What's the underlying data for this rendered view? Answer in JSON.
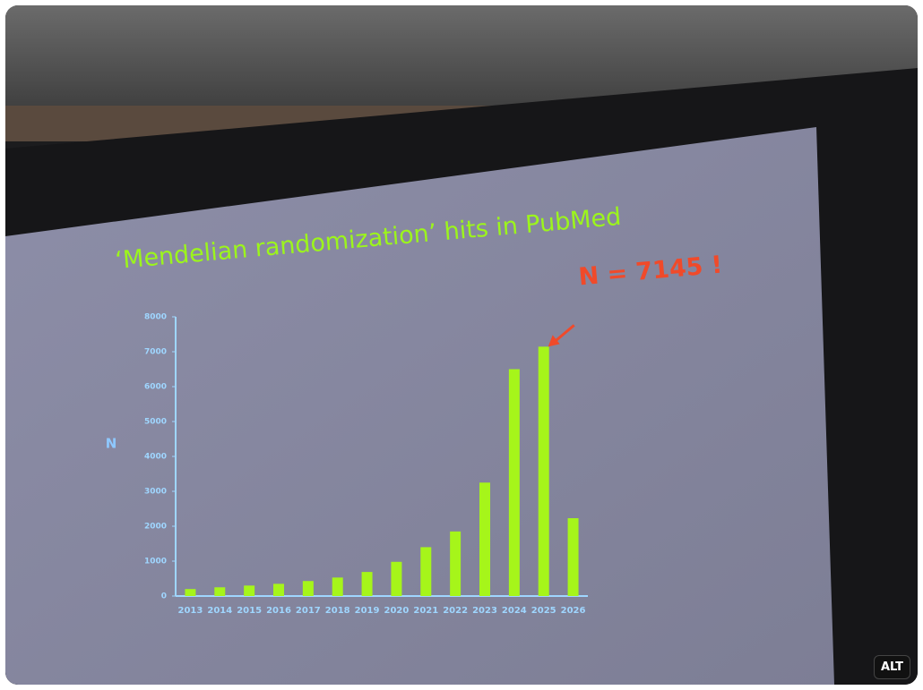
{
  "alt_button": "ALT",
  "chart_data": {
    "type": "bar",
    "title": "‘Mendelian randomization’ hits in PubMed",
    "y_label": "N",
    "annotation": "N = 7145 !",
    "categories": [
      "2013",
      "2014",
      "2015",
      "2016",
      "2017",
      "2018",
      "2019",
      "2020",
      "2021",
      "2022",
      "2023",
      "2024",
      "2025",
      "2026"
    ],
    "values": [
      200,
      250,
      300,
      350,
      430,
      530,
      690,
      980,
      1400,
      1850,
      3250,
      6500,
      7145,
      2230
    ],
    "color": "#a6f51a",
    "ylim": [
      0,
      8000
    ],
    "yticks": [
      0,
      1000,
      2000,
      3000,
      4000,
      5000,
      6000,
      7000,
      8000
    ]
  }
}
